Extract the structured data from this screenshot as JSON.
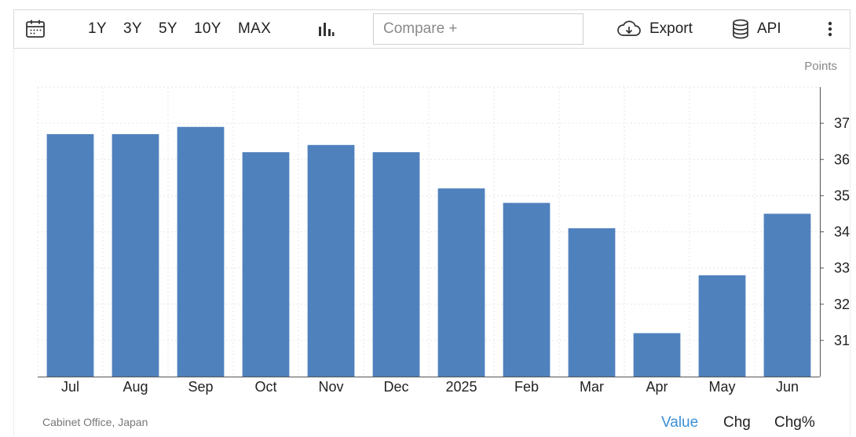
{
  "toolbar": {
    "ranges": [
      "1Y",
      "3Y",
      "5Y",
      "10Y",
      "MAX"
    ],
    "compare_placeholder": "Compare +",
    "export_label": "Export",
    "api_label": "API",
    "icons": [
      "calendar-icon",
      "bar-chart-icon",
      "cloud-download-icon",
      "database-icon",
      "more-vertical-icon"
    ]
  },
  "units_label": "Points",
  "source": "Cabinet Office, Japan",
  "view_tabs": {
    "value": "Value",
    "chg": "Chg",
    "chg_pct": "Chg%"
  },
  "colors": {
    "bar": "#4f81bd",
    "active_tab": "#3a8fd6"
  },
  "chart_data": {
    "type": "bar",
    "categories": [
      "Jul",
      "Aug",
      "Sep",
      "Oct",
      "Nov",
      "Dec",
      "2025",
      "Feb",
      "Mar",
      "Apr",
      "May",
      "Jun"
    ],
    "values": [
      36.7,
      36.7,
      36.9,
      36.2,
      36.4,
      36.2,
      35.2,
      34.8,
      34.1,
      31.2,
      32.8,
      34.5
    ],
    "yticks": [
      31,
      32,
      33,
      34,
      35,
      36,
      37
    ],
    "ylim": [
      30,
      38
    ],
    "grid": true,
    "ylabel": "Points"
  }
}
